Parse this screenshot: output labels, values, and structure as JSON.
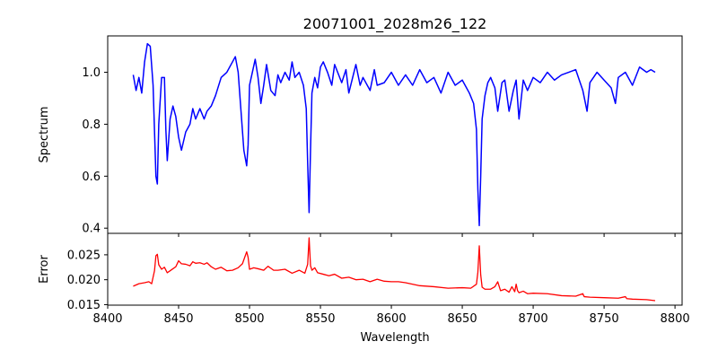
{
  "chart_data": [
    {
      "panel": "top",
      "type": "line",
      "title": "20071001_2028m26_122",
      "ylabel": "Spectrum",
      "xlim": [
        8400,
        8805
      ],
      "ylim": [
        0.38,
        1.14
      ],
      "xticks": [
        8400,
        8450,
        8500,
        8550,
        8600,
        8650,
        8700,
        8750,
        8800
      ],
      "yticks": [
        0.4,
        0.6,
        0.8,
        1.0
      ],
      "ytick_labels": [
        "0.4",
        "0.6",
        "0.8",
        "1.0"
      ],
      "show_xtick_labels": false,
      "series": [
        {
          "color": "#0000ff",
          "x": [
            8418,
            8420,
            8422,
            8424,
            8426,
            8428,
            8430,
            8432,
            8434,
            8435,
            8436,
            8438,
            8440,
            8441,
            8442,
            8444,
            8446,
            8448,
            8450,
            8452,
            8455,
            8458,
            8460,
            8462,
            8465,
            8468,
            8470,
            8473,
            8476,
            8480,
            8484,
            8488,
            8490,
            8492,
            8494,
            8496,
            8498,
            8499,
            8500,
            8502,
            8504,
            8506,
            8508,
            8510,
            8512,
            8515,
            8518,
            8520,
            8522,
            8525,
            8528,
            8530,
            8532,
            8535,
            8538,
            8540,
            8541,
            8542,
            8543,
            8544,
            8546,
            8548,
            8550,
            8552,
            8555,
            8558,
            8560,
            8565,
            8568,
            8570,
            8575,
            8578,
            8580,
            8585,
            8588,
            8590,
            8595,
            8600,
            8605,
            8610,
            8615,
            8620,
            8625,
            8630,
            8635,
            8640,
            8645,
            8650,
            8655,
            8658,
            8660,
            8661,
            8662,
            8663,
            8664,
            8666,
            8668,
            8670,
            8673,
            8675,
            8678,
            8680,
            8683,
            8686,
            8688,
            8690,
            8693,
            8696,
            8700,
            8705,
            8710,
            8715,
            8720,
            8725,
            8730,
            8735,
            8738,
            8740,
            8745,
            8750,
            8755,
            8758,
            8760,
            8765,
            8770,
            8775,
            8780,
            8783,
            8786
          ],
          "y": [
            0.99,
            0.93,
            0.98,
            0.92,
            1.04,
            1.11,
            1.1,
            0.95,
            0.6,
            0.57,
            0.8,
            0.98,
            0.98,
            0.78,
            0.66,
            0.82,
            0.87,
            0.83,
            0.75,
            0.7,
            0.77,
            0.8,
            0.86,
            0.82,
            0.86,
            0.82,
            0.85,
            0.87,
            0.91,
            0.98,
            1.0,
            1.04,
            1.06,
            1.0,
            0.85,
            0.7,
            0.64,
            0.72,
            0.95,
            1.0,
            1.05,
            0.98,
            0.88,
            0.95,
            1.03,
            0.93,
            0.91,
            0.99,
            0.96,
            1.0,
            0.97,
            1.04,
            0.98,
            1.0,
            0.95,
            0.86,
            0.65,
            0.46,
            0.7,
            0.92,
            0.98,
            0.94,
            1.02,
            1.04,
            1.0,
            0.95,
            1.03,
            0.96,
            1.01,
            0.92,
            1.03,
            0.95,
            0.98,
            0.93,
            1.01,
            0.95,
            0.96,
            1.0,
            0.95,
            0.99,
            0.95,
            1.01,
            0.96,
            0.98,
            0.92,
            1.0,
            0.95,
            0.97,
            0.92,
            0.88,
            0.78,
            0.55,
            0.41,
            0.6,
            0.82,
            0.91,
            0.96,
            0.98,
            0.94,
            0.85,
            0.96,
            0.97,
            0.85,
            0.93,
            0.97,
            0.82,
            0.97,
            0.93,
            0.98,
            0.96,
            1.0,
            0.97,
            0.99,
            1.0,
            1.01,
            0.93,
            0.85,
            0.96,
            1.0,
            0.97,
            0.94,
            0.88,
            0.98,
            1.0,
            0.95,
            1.02,
            1.0,
            1.01,
            1.0
          ]
        }
      ]
    },
    {
      "panel": "bottom",
      "type": "line",
      "xlabel": "Wavelength",
      "ylabel": "Error",
      "xlim": [
        8400,
        8805
      ],
      "ylim": [
        0.0149,
        0.0293
      ],
      "xticks": [
        8400,
        8450,
        8500,
        8550,
        8600,
        8650,
        8700,
        8750,
        8800
      ],
      "xtick_labels": [
        "8400",
        "8450",
        "8500",
        "8550",
        "8600",
        "8650",
        "8700",
        "8750",
        "8800"
      ],
      "yticks": [
        0.015,
        0.02,
        0.025
      ],
      "ytick_labels": [
        "0.015",
        "0.020",
        "0.025"
      ],
      "series": [
        {
          "color": "#ff0000",
          "x": [
            8418,
            8422,
            8426,
            8429,
            8431,
            8433,
            8434,
            8435,
            8436,
            8438,
            8440,
            8442,
            8444,
            8446,
            8448,
            8450,
            8452,
            8455,
            8458,
            8460,
            8462,
            8465,
            8468,
            8470,
            8473,
            8476,
            8480,
            8484,
            8488,
            8492,
            8495,
            8497,
            8498,
            8499,
            8500,
            8503,
            8506,
            8510,
            8513,
            8515,
            8517,
            8520,
            8525,
            8530,
            8535,
            8539,
            8541,
            8542,
            8543,
            8544,
            8546,
            8548,
            8552,
            8556,
            8560,
            8565,
            8570,
            8575,
            8580,
            8585,
            8590,
            8595,
            8600,
            8605,
            8610,
            8620,
            8630,
            8640,
            8650,
            8656,
            8660,
            8661,
            8662,
            8663,
            8664,
            8666,
            8670,
            8673,
            8675,
            8677,
            8680,
            8683,
            8685,
            8687,
            8688,
            8689,
            8690,
            8693,
            8696,
            8700,
            8710,
            8720,
            8730,
            8735,
            8736,
            8740,
            8750,
            8760,
            8765,
            8766,
            8770,
            8780,
            8786
          ],
          "y": [
            0.0187,
            0.0192,
            0.0194,
            0.0196,
            0.0192,
            0.0218,
            0.0248,
            0.0251,
            0.023,
            0.0221,
            0.0225,
            0.0214,
            0.0218,
            0.0222,
            0.0226,
            0.0238,
            0.0232,
            0.0231,
            0.0228,
            0.0236,
            0.0233,
            0.0234,
            0.0231,
            0.0234,
            0.0226,
            0.0221,
            0.0225,
            0.0218,
            0.0219,
            0.0224,
            0.0232,
            0.0248,
            0.0256,
            0.0245,
            0.0221,
            0.0224,
            0.0222,
            0.0219,
            0.0227,
            0.0223,
            0.0219,
            0.0219,
            0.0221,
            0.0213,
            0.0219,
            0.0213,
            0.0231,
            0.0284,
            0.0228,
            0.0219,
            0.0224,
            0.0214,
            0.0211,
            0.0208,
            0.0211,
            0.0203,
            0.0205,
            0.02,
            0.0201,
            0.0196,
            0.0201,
            0.0197,
            0.0196,
            0.0196,
            0.0194,
            0.0188,
            0.0186,
            0.0183,
            0.0184,
            0.0183,
            0.0191,
            0.0215,
            0.0268,
            0.021,
            0.0185,
            0.0181,
            0.0181,
            0.0186,
            0.0196,
            0.0178,
            0.0181,
            0.0175,
            0.0186,
            0.0176,
            0.0191,
            0.0178,
            0.0174,
            0.0177,
            0.0172,
            0.0173,
            0.0172,
            0.0168,
            0.0167,
            0.0172,
            0.0166,
            0.0165,
            0.0164,
            0.0163,
            0.0166,
            0.0162,
            0.0161,
            0.016,
            0.0158
          ]
        }
      ]
    }
  ]
}
